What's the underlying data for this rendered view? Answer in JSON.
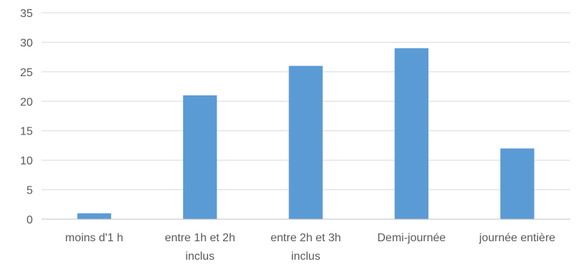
{
  "chart_data": {
    "type": "bar",
    "title": "",
    "xlabel": "",
    "ylabel": "",
    "categories": [
      [
        "moins d'1 h"
      ],
      [
        "entre 1h et 2h",
        "inclus"
      ],
      [
        "entre 2h et 3h",
        "inclus"
      ],
      [
        "Demi-journée"
      ],
      [
        "journée entière"
      ]
    ],
    "values": [
      1,
      21,
      26,
      29,
      12
    ],
    "ylim": [
      0,
      35
    ],
    "yticks": [
      0,
      5,
      10,
      15,
      20,
      25,
      30,
      35
    ],
    "grid": true,
    "legend": "none",
    "bar_color": "#5b9bd5"
  }
}
